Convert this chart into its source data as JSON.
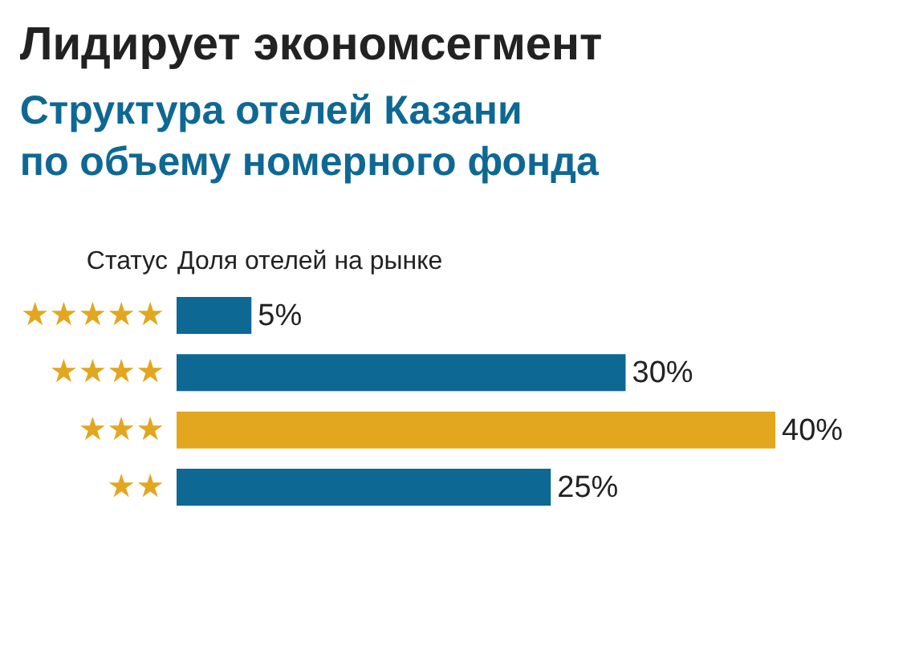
{
  "chart_data": {
    "type": "bar",
    "orientation": "horizontal",
    "title": "Лидирует экономсегмент",
    "subtitle": "Структура отелей Казани\nпо объему номерного фонда",
    "ylabel": "Статус",
    "xlabel": "Доля отелей на рынке",
    "categories": [
      "★★★★★",
      "★★★★",
      "★★★",
      "★★"
    ],
    "values": [
      5,
      30,
      40,
      25
    ],
    "colors": [
      "#0e6894",
      "#0e6894",
      "#e2a71e",
      "#0e6894"
    ],
    "value_labels": [
      "5%",
      "30%",
      "40%",
      "25%"
    ],
    "tick_labels": "y",
    "grid": false,
    "legend": false
  }
}
